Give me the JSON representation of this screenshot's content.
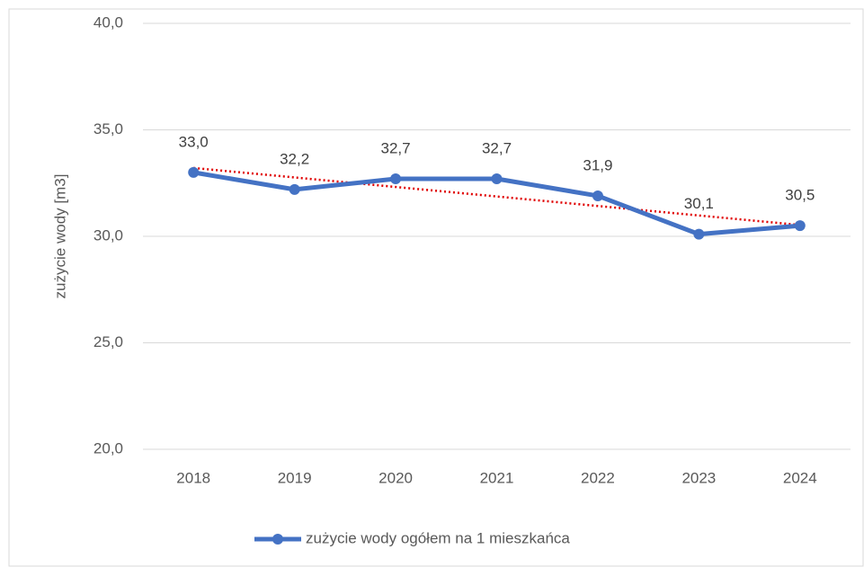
{
  "chart_data": {
    "type": "line",
    "y_label": "zużycie wody [m3]",
    "categories": [
      "2018",
      "2019",
      "2020",
      "2021",
      "2022",
      "2023",
      "2024"
    ],
    "series": [
      {
        "name": "zużycie wody ogółem na 1 mieszkańca",
        "color": "#4472c4",
        "values": [
          33.0,
          32.2,
          32.7,
          32.7,
          31.9,
          30.1,
          30.5
        ],
        "value_labels": [
          "33,0",
          "32,2",
          "32,7",
          "32,7",
          "31,9",
          "30,1",
          "30,5"
        ]
      }
    ],
    "ylim": [
      20,
      40
    ],
    "yticks": [
      {
        "value": 20,
        "label": "20,0"
      },
      {
        "value": 25,
        "label": "25,0"
      },
      {
        "value": 30,
        "label": "30,0"
      },
      {
        "value": 35,
        "label": "35,0"
      },
      {
        "value": 40,
        "label": "40,0"
      }
    ],
    "grid": true,
    "trendline": {
      "type": "linear",
      "color": "#e00000"
    },
    "legend": "bottom"
  }
}
